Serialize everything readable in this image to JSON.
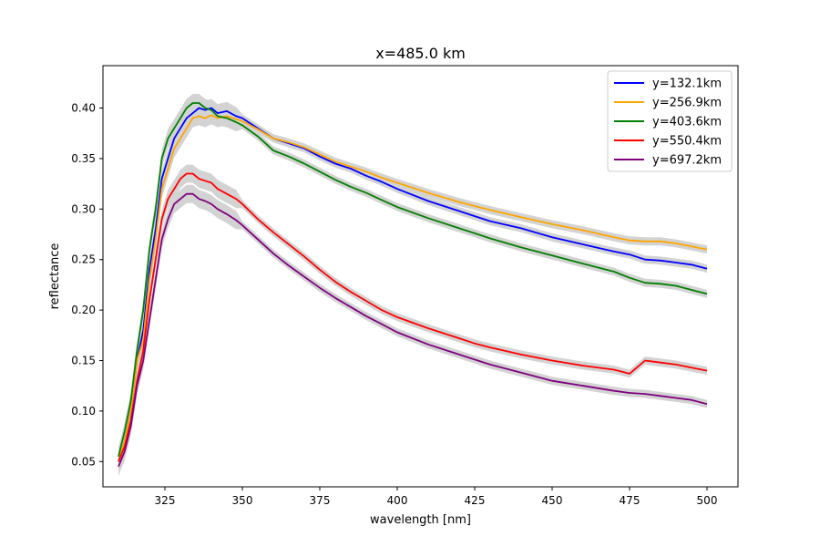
{
  "chart_data": {
    "type": "line",
    "title": "x=485.0 km",
    "xlabel": "wavelength [nm]",
    "ylabel": "reflectance",
    "xlim": [
      305,
      510
    ],
    "ylim": [
      0.025,
      0.442
    ],
    "xticks": [
      325,
      350,
      375,
      400,
      425,
      450,
      475,
      500
    ],
    "xtick_labels": [
      "325",
      "350",
      "375",
      "400",
      "425",
      "450",
      "475",
      "500"
    ],
    "yticks": [
      0.05,
      0.1,
      0.15,
      0.2,
      0.25,
      0.3,
      0.35,
      0.4
    ],
    "ytick_labels": [
      "0.05",
      "0.10",
      "0.15",
      "0.20",
      "0.25",
      "0.30",
      "0.35",
      "0.40"
    ],
    "grid": false,
    "legend_position": "top-right",
    "uncertainty_band_color": "#d3d3d3",
    "series": [
      {
        "name": "y=132.1km",
        "color": "#0000ff",
        "x": [
          310,
          312,
          314,
          316,
          318,
          320,
          322,
          324,
          326,
          328,
          330,
          332,
          334,
          336,
          338,
          340,
          342,
          345,
          348,
          350,
          355,
          360,
          365,
          370,
          375,
          380,
          385,
          390,
          395,
          400,
          410,
          420,
          425,
          430,
          440,
          450,
          460,
          470,
          475,
          480,
          485,
          490,
          495,
          500
        ],
        "y": [
          0.05,
          0.07,
          0.1,
          0.15,
          0.18,
          0.24,
          0.28,
          0.33,
          0.35,
          0.37,
          0.38,
          0.39,
          0.395,
          0.4,
          0.398,
          0.4,
          0.395,
          0.397,
          0.392,
          0.39,
          0.38,
          0.37,
          0.365,
          0.36,
          0.352,
          0.345,
          0.34,
          0.333,
          0.327,
          0.32,
          0.308,
          0.298,
          0.293,
          0.288,
          0.281,
          0.272,
          0.265,
          0.258,
          0.255,
          0.25,
          0.249,
          0.247,
          0.245,
          0.241
        ]
      },
      {
        "name": "y=256.9km",
        "color": "#ffa500",
        "x": [
          310,
          312,
          314,
          316,
          318,
          320,
          322,
          324,
          326,
          328,
          330,
          332,
          334,
          336,
          338,
          340,
          342,
          345,
          348,
          350,
          355,
          360,
          365,
          370,
          375,
          380,
          385,
          390,
          395,
          400,
          410,
          420,
          425,
          430,
          440,
          450,
          460,
          470,
          475,
          480,
          485,
          490,
          495,
          500
        ],
        "y": [
          0.05,
          0.07,
          0.1,
          0.15,
          0.17,
          0.23,
          0.27,
          0.32,
          0.34,
          0.36,
          0.37,
          0.38,
          0.39,
          0.392,
          0.39,
          0.393,
          0.39,
          0.392,
          0.389,
          0.387,
          0.379,
          0.37,
          0.366,
          0.361,
          0.354,
          0.347,
          0.342,
          0.337,
          0.331,
          0.326,
          0.316,
          0.307,
          0.303,
          0.299,
          0.292,
          0.285,
          0.279,
          0.272,
          0.269,
          0.268,
          0.268,
          0.266,
          0.263,
          0.26
        ]
      },
      {
        "name": "y=403.6km",
        "color": "#008000",
        "x": [
          310,
          312,
          314,
          316,
          318,
          320,
          322,
          324,
          326,
          328,
          330,
          332,
          334,
          336,
          338,
          340,
          342,
          345,
          348,
          350,
          355,
          360,
          365,
          370,
          375,
          380,
          385,
          390,
          395,
          400,
          410,
          420,
          425,
          430,
          440,
          450,
          460,
          470,
          475,
          480,
          485,
          490,
          495,
          500
        ],
        "y": [
          0.055,
          0.08,
          0.11,
          0.16,
          0.2,
          0.26,
          0.3,
          0.35,
          0.37,
          0.38,
          0.39,
          0.4,
          0.405,
          0.405,
          0.4,
          0.398,
          0.392,
          0.39,
          0.386,
          0.383,
          0.372,
          0.358,
          0.352,
          0.345,
          0.337,
          0.329,
          0.322,
          0.316,
          0.309,
          0.302,
          0.291,
          0.281,
          0.276,
          0.271,
          0.262,
          0.254,
          0.246,
          0.238,
          0.232,
          0.227,
          0.226,
          0.224,
          0.22,
          0.216
        ]
      },
      {
        "name": "y=550.4km",
        "color": "#ff0000",
        "x": [
          310,
          312,
          314,
          316,
          318,
          320,
          322,
          324,
          326,
          328,
          330,
          332,
          334,
          336,
          338,
          340,
          342,
          345,
          348,
          350,
          355,
          360,
          365,
          370,
          375,
          380,
          385,
          390,
          395,
          400,
          410,
          420,
          425,
          430,
          440,
          450,
          460,
          470,
          475,
          480,
          485,
          490,
          495,
          500
        ],
        "y": [
          0.05,
          0.065,
          0.09,
          0.13,
          0.16,
          0.21,
          0.25,
          0.29,
          0.31,
          0.32,
          0.33,
          0.335,
          0.335,
          0.33,
          0.328,
          0.326,
          0.32,
          0.315,
          0.31,
          0.305,
          0.29,
          0.277,
          0.265,
          0.253,
          0.24,
          0.228,
          0.218,
          0.209,
          0.2,
          0.193,
          0.182,
          0.172,
          0.167,
          0.163,
          0.156,
          0.15,
          0.145,
          0.141,
          0.137,
          0.15,
          0.148,
          0.146,
          0.143,
          0.14
        ]
      },
      {
        "name": "y=697.2km",
        "color": "#800080",
        "x": [
          310,
          312,
          314,
          316,
          318,
          320,
          322,
          324,
          326,
          328,
          330,
          332,
          334,
          336,
          338,
          340,
          342,
          345,
          348,
          350,
          355,
          360,
          365,
          370,
          375,
          380,
          385,
          390,
          395,
          400,
          410,
          420,
          425,
          430,
          440,
          450,
          460,
          470,
          475,
          480,
          485,
          490,
          495,
          500
        ],
        "y": [
          0.045,
          0.06,
          0.085,
          0.125,
          0.15,
          0.19,
          0.23,
          0.27,
          0.29,
          0.305,
          0.31,
          0.315,
          0.315,
          0.31,
          0.308,
          0.305,
          0.3,
          0.295,
          0.289,
          0.284,
          0.27,
          0.256,
          0.244,
          0.233,
          0.222,
          0.212,
          0.203,
          0.194,
          0.186,
          0.178,
          0.166,
          0.156,
          0.151,
          0.146,
          0.138,
          0.13,
          0.125,
          0.12,
          0.118,
          0.117,
          0.115,
          0.113,
          0.111,
          0.107
        ]
      }
    ]
  }
}
